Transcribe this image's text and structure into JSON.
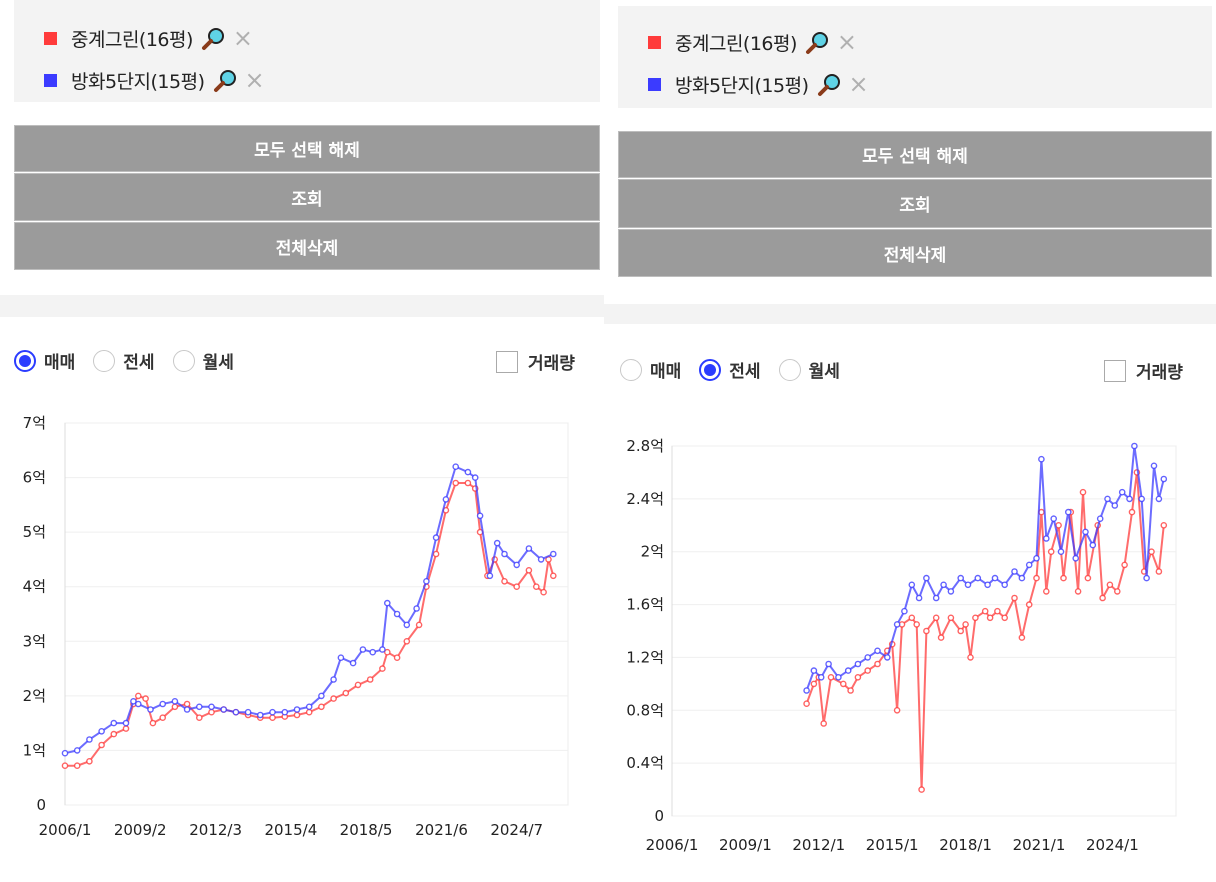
{
  "left": {
    "legend": [
      {
        "name": "중계그린(16평)",
        "color": "#ff3b3b",
        "icon": "magnifier-icon",
        "remove": "×"
      },
      {
        "name": "방화5단지(15평)",
        "color": "#3b3bff",
        "icon": "magnifier-icon",
        "remove": "×"
      }
    ],
    "buttons": {
      "deselect_all": "모두 선택 해제",
      "search": "조회",
      "delete_all": "전체삭제"
    },
    "radios": [
      {
        "label": "매매",
        "checked": true
      },
      {
        "label": "전세",
        "checked": false
      },
      {
        "label": "월세",
        "checked": false
      }
    ],
    "volume_checkbox": {
      "label": "거래량",
      "checked": false
    }
  },
  "right": {
    "legend": [
      {
        "name": "중계그린(16평)",
        "color": "#ff3b3b",
        "icon": "magnifier-icon",
        "remove": "×"
      },
      {
        "name": "방화5단지(15평)",
        "color": "#3b3bff",
        "icon": "magnifier-icon",
        "remove": "×"
      }
    ],
    "buttons": {
      "deselect_all": "모두 선택 해제",
      "search": "조회",
      "delete_all": "전체삭제"
    },
    "radios": [
      {
        "label": "매매",
        "checked": false
      },
      {
        "label": "전세",
        "checked": true
      },
      {
        "label": "월세",
        "checked": false
      }
    ],
    "volume_checkbox": {
      "label": "거래량",
      "checked": false
    }
  },
  "chart_data": [
    {
      "type": "line",
      "x_start": 2006.0,
      "x_end": 2026.6,
      "xticks": [
        2006.0,
        2009.08,
        2012.17,
        2015.25,
        2018.33,
        2021.42,
        2024.5
      ],
      "xtick_labels": [
        "2006/1",
        "2009/2",
        "2012/3",
        "2015/4",
        "2018/5",
        "2021/6",
        "2024/7"
      ],
      "ylim": [
        0,
        7
      ],
      "yticks": [
        0,
        1,
        2,
        3,
        4,
        5,
        6,
        7
      ],
      "ytick_labels": [
        "0",
        "1억",
        "2억",
        "3억",
        "4억",
        "5억",
        "6억",
        "7억"
      ],
      "grid": true,
      "series": [
        {
          "color": "#ff3b3b",
          "points": [
            [
              2006.0,
              0.72
            ],
            [
              2006.5,
              0.72
            ],
            [
              2007.0,
              0.8
            ],
            [
              2007.5,
              1.1
            ],
            [
              2008.0,
              1.3
            ],
            [
              2008.5,
              1.4
            ],
            [
              2008.8,
              1.85
            ],
            [
              2009.0,
              2.0
            ],
            [
              2009.3,
              1.95
            ],
            [
              2009.6,
              1.5
            ],
            [
              2010.0,
              1.6
            ],
            [
              2010.5,
              1.8
            ],
            [
              2011.0,
              1.85
            ],
            [
              2011.5,
              1.6
            ],
            [
              2012.0,
              1.7
            ],
            [
              2012.5,
              1.75
            ],
            [
              2013.0,
              1.7
            ],
            [
              2013.5,
              1.65
            ],
            [
              2014.0,
              1.6
            ],
            [
              2014.5,
              1.6
            ],
            [
              2015.0,
              1.62
            ],
            [
              2015.5,
              1.65
            ],
            [
              2016.0,
              1.7
            ],
            [
              2016.5,
              1.8
            ],
            [
              2017.0,
              1.95
            ],
            [
              2017.5,
              2.05
            ],
            [
              2018.0,
              2.2
            ],
            [
              2018.5,
              2.3
            ],
            [
              2019.0,
              2.5
            ],
            [
              2019.2,
              2.8
            ],
            [
              2019.6,
              2.7
            ],
            [
              2020.0,
              3.0
            ],
            [
              2020.5,
              3.3
            ],
            [
              2020.8,
              4.0
            ],
            [
              2021.2,
              4.6
            ],
            [
              2021.6,
              5.4
            ],
            [
              2022.0,
              5.9
            ],
            [
              2022.5,
              5.9
            ],
            [
              2022.8,
              5.8
            ],
            [
              2023.0,
              5.0
            ],
            [
              2023.3,
              4.2
            ],
            [
              2023.6,
              4.5
            ],
            [
              2024.0,
              4.1
            ],
            [
              2024.5,
              4.0
            ],
            [
              2025.0,
              4.3
            ],
            [
              2025.3,
              4.0
            ],
            [
              2025.6,
              3.9
            ],
            [
              2025.8,
              4.5
            ],
            [
              2026.0,
              4.2
            ]
          ]
        },
        {
          "color": "#3b3bff",
          "points": [
            [
              2006.0,
              0.95
            ],
            [
              2006.5,
              1.0
            ],
            [
              2007.0,
              1.2
            ],
            [
              2007.5,
              1.35
            ],
            [
              2008.0,
              1.5
            ],
            [
              2008.5,
              1.5
            ],
            [
              2008.8,
              1.9
            ],
            [
              2009.0,
              1.85
            ],
            [
              2009.5,
              1.75
            ],
            [
              2010.0,
              1.85
            ],
            [
              2010.5,
              1.9
            ],
            [
              2011.0,
              1.75
            ],
            [
              2011.5,
              1.8
            ],
            [
              2012.0,
              1.8
            ],
            [
              2012.5,
              1.75
            ],
            [
              2013.0,
              1.7
            ],
            [
              2013.5,
              1.7
            ],
            [
              2014.0,
              1.65
            ],
            [
              2014.5,
              1.7
            ],
            [
              2015.0,
              1.7
            ],
            [
              2015.5,
              1.75
            ],
            [
              2016.0,
              1.8
            ],
            [
              2016.5,
              2.0
            ],
            [
              2017.0,
              2.3
            ],
            [
              2017.3,
              2.7
            ],
            [
              2017.8,
              2.6
            ],
            [
              2018.2,
              2.85
            ],
            [
              2018.6,
              2.8
            ],
            [
              2019.0,
              2.85
            ],
            [
              2019.2,
              3.7
            ],
            [
              2019.6,
              3.5
            ],
            [
              2020.0,
              3.3
            ],
            [
              2020.4,
              3.6
            ],
            [
              2020.8,
              4.1
            ],
            [
              2021.2,
              4.9
            ],
            [
              2021.6,
              5.6
            ],
            [
              2022.0,
              6.2
            ],
            [
              2022.5,
              6.1
            ],
            [
              2022.8,
              6.0
            ],
            [
              2023.0,
              5.3
            ],
            [
              2023.4,
              4.2
            ],
            [
              2023.7,
              4.8
            ],
            [
              2024.0,
              4.6
            ],
            [
              2024.5,
              4.4
            ],
            [
              2025.0,
              4.7
            ],
            [
              2025.5,
              4.5
            ],
            [
              2026.0,
              4.6
            ]
          ]
        }
      ]
    },
    {
      "type": "line",
      "x_start": 2006.0,
      "x_end": 2026.6,
      "xticks": [
        2006.0,
        2009.0,
        2012.0,
        2015.0,
        2018.0,
        2021.0,
        2024.0
      ],
      "xtick_labels": [
        "2006/1",
        "2009/1",
        "2012/1",
        "2015/1",
        "2018/1",
        "2021/1",
        "2024/1"
      ],
      "ylim": [
        0,
        2.8
      ],
      "yticks": [
        0,
        0.4,
        0.8,
        1.2,
        1.6,
        2.0,
        2.4,
        2.8
      ],
      "ytick_labels": [
        "0",
        "0.4억",
        "0.8억",
        "1.2억",
        "1.6억",
        "2억",
        "2.4억",
        "2.8억"
      ],
      "grid": true,
      "series": [
        {
          "color": "#ff3b3b",
          "points": [
            [
              2011.5,
              0.85
            ],
            [
              2011.8,
              1.0
            ],
            [
              2012.0,
              1.05
            ],
            [
              2012.2,
              0.7
            ],
            [
              2012.5,
              1.05
            ],
            [
              2013.0,
              1.0
            ],
            [
              2013.3,
              0.95
            ],
            [
              2013.6,
              1.05
            ],
            [
              2014.0,
              1.1
            ],
            [
              2014.4,
              1.15
            ],
            [
              2014.8,
              1.25
            ],
            [
              2015.0,
              1.3
            ],
            [
              2015.2,
              0.8
            ],
            [
              2015.4,
              1.45
            ],
            [
              2015.8,
              1.5
            ],
            [
              2016.0,
              1.45
            ],
            [
              2016.2,
              0.2
            ],
            [
              2016.4,
              1.4
            ],
            [
              2016.8,
              1.5
            ],
            [
              2017.0,
              1.35
            ],
            [
              2017.4,
              1.5
            ],
            [
              2017.8,
              1.4
            ],
            [
              2018.0,
              1.45
            ],
            [
              2018.2,
              1.2
            ],
            [
              2018.4,
              1.5
            ],
            [
              2018.8,
              1.55
            ],
            [
              2019.0,
              1.5
            ],
            [
              2019.3,
              1.55
            ],
            [
              2019.6,
              1.5
            ],
            [
              2020.0,
              1.65
            ],
            [
              2020.3,
              1.35
            ],
            [
              2020.6,
              1.6
            ],
            [
              2020.9,
              1.8
            ],
            [
              2021.1,
              2.3
            ],
            [
              2021.3,
              1.7
            ],
            [
              2021.5,
              2.0
            ],
            [
              2021.8,
              2.2
            ],
            [
              2022.0,
              1.8
            ],
            [
              2022.3,
              2.3
            ],
            [
              2022.6,
              1.7
            ],
            [
              2022.8,
              2.45
            ],
            [
              2023.0,
              1.8
            ],
            [
              2023.4,
              2.2
            ],
            [
              2023.6,
              1.65
            ],
            [
              2023.9,
              1.75
            ],
            [
              2024.2,
              1.7
            ],
            [
              2024.5,
              1.9
            ],
            [
              2024.8,
              2.3
            ],
            [
              2025.0,
              2.6
            ],
            [
              2025.3,
              1.85
            ],
            [
              2025.6,
              2.0
            ],
            [
              2025.9,
              1.85
            ],
            [
              2026.1,
              2.2
            ]
          ]
        },
        {
          "color": "#3b3bff",
          "points": [
            [
              2011.5,
              0.95
            ],
            [
              2011.8,
              1.1
            ],
            [
              2012.1,
              1.05
            ],
            [
              2012.4,
              1.15
            ],
            [
              2012.8,
              1.05
            ],
            [
              2013.2,
              1.1
            ],
            [
              2013.6,
              1.15
            ],
            [
              2014.0,
              1.2
            ],
            [
              2014.4,
              1.25
            ],
            [
              2014.8,
              1.2
            ],
            [
              2015.2,
              1.45
            ],
            [
              2015.5,
              1.55
            ],
            [
              2015.8,
              1.75
            ],
            [
              2016.1,
              1.65
            ],
            [
              2016.4,
              1.8
            ],
            [
              2016.8,
              1.65
            ],
            [
              2017.1,
              1.75
            ],
            [
              2017.4,
              1.7
            ],
            [
              2017.8,
              1.8
            ],
            [
              2018.1,
              1.75
            ],
            [
              2018.5,
              1.8
            ],
            [
              2018.9,
              1.75
            ],
            [
              2019.2,
              1.8
            ],
            [
              2019.6,
              1.75
            ],
            [
              2020.0,
              1.85
            ],
            [
              2020.3,
              1.8
            ],
            [
              2020.6,
              1.9
            ],
            [
              2020.9,
              1.95
            ],
            [
              2021.1,
              2.7
            ],
            [
              2021.3,
              2.1
            ],
            [
              2021.6,
              2.25
            ],
            [
              2021.9,
              2.0
            ],
            [
              2022.2,
              2.3
            ],
            [
              2022.5,
              1.95
            ],
            [
              2022.9,
              2.15
            ],
            [
              2023.2,
              2.05
            ],
            [
              2023.5,
              2.25
            ],
            [
              2023.8,
              2.4
            ],
            [
              2024.1,
              2.35
            ],
            [
              2024.4,
              2.45
            ],
            [
              2024.7,
              2.4
            ],
            [
              2024.9,
              2.8
            ],
            [
              2025.2,
              2.4
            ],
            [
              2025.4,
              1.8
            ],
            [
              2025.7,
              2.65
            ],
            [
              2025.9,
              2.4
            ],
            [
              2026.1,
              2.55
            ]
          ]
        }
      ]
    }
  ]
}
